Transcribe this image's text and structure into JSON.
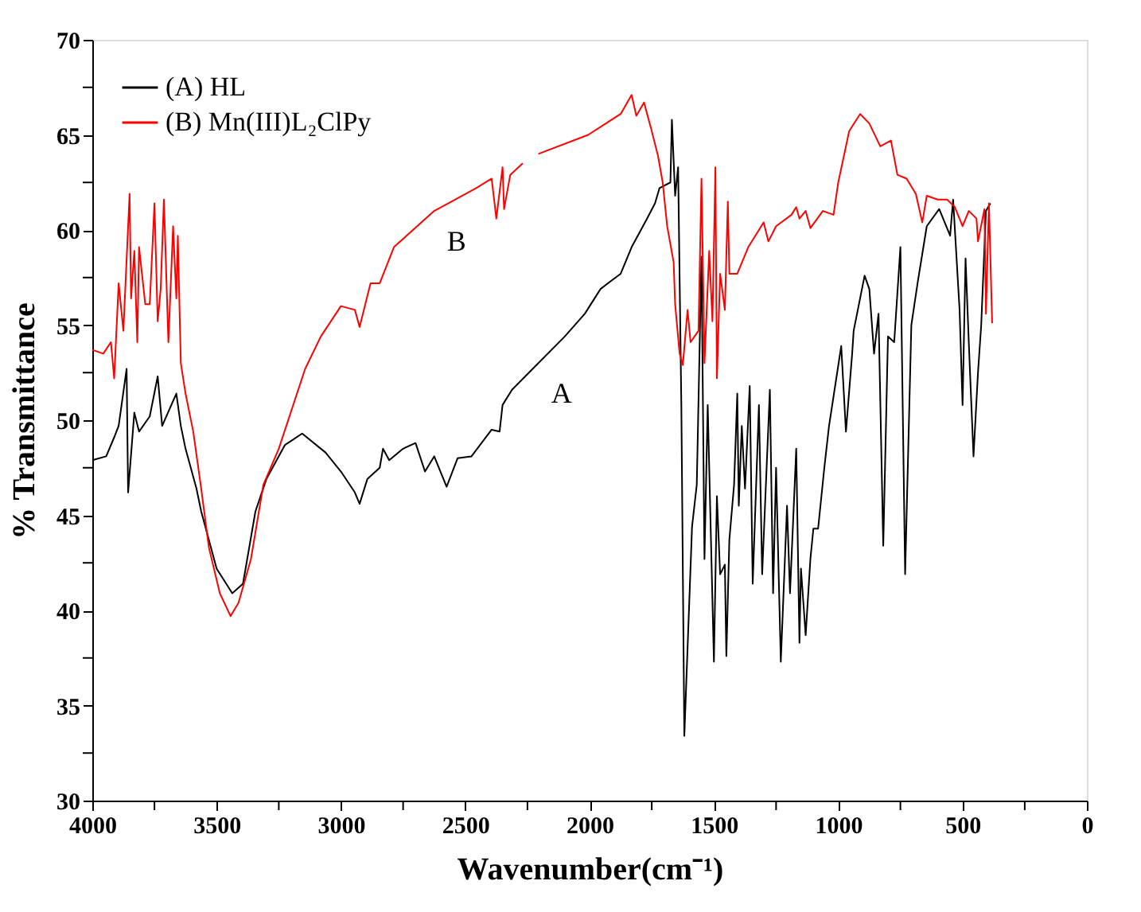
{
  "chart_data": {
    "type": "line",
    "xlabel": "Wavenumber(cm⁻¹)",
    "ylabel": "% Transmittance",
    "xlim": [
      4000,
      0
    ],
    "ylim": [
      30,
      70
    ],
    "xticks": [
      4000,
      {
        "value": 3750,
        "label": null
      },
      3500,
      {
        "value": 3250,
        "label": null
      },
      3000,
      {
        "value": 2750,
        "label": null
      },
      2500,
      {
        "value": 2250,
        "label": null
      },
      2000,
      {
        "value": 1750,
        "label": null
      },
      1500,
      {
        "value": 1250,
        "label": null
      },
      1000,
      {
        "value": 750,
        "label": null
      },
      500,
      {
        "value": 250,
        "label": null
      },
      0
    ],
    "yticks": [
      30,
      {
        "value": 32.5,
        "label": null
      },
      35,
      {
        "value": 37.5,
        "label": null
      },
      40,
      {
        "value": 42.5,
        "label": null
      },
      45,
      {
        "value": 47.5,
        "label": null
      },
      50,
      {
        "value": 52.5,
        "label": null
      },
      55,
      {
        "value": 57.5,
        "label": null
      },
      60,
      {
        "value": 62.5,
        "label": null
      },
      65,
      {
        "value": 67.5,
        "label": null
      },
      70
    ],
    "grid": false,
    "legend": "top left",
    "marker": "none",
    "line_style": "solid",
    "annotations": [
      {
        "text": "A",
        "x": 2206,
        "y": 53.0
      },
      {
        "text": "B",
        "x": 2625,
        "y": 61.0
      }
    ],
    "series": [
      {
        "name": "(A) HL",
        "color": "#000000",
        "x": [
          4000,
          3944,
          3912,
          3894,
          3862,
          3856,
          3831,
          3812,
          3769,
          3737,
          3719,
          3662,
          3644,
          3625,
          3581,
          3562,
          3500,
          3437,
          3394,
          3344,
          3300,
          3225,
          3156,
          3062,
          3000,
          2944,
          2925,
          2894,
          2844,
          2831,
          2806,
          2750,
          2700,
          2662,
          2625,
          2575,
          2531,
          2475,
          2394,
          2362,
          2350,
          2312,
          2206,
          2100,
          2019,
          1956,
          1875,
          1831,
          1769,
          1737,
          1719,
          1675,
          1669,
          1656,
          1644,
          1631,
          1619,
          1588,
          1569,
          1550,
          1538,
          1525,
          1500,
          1488,
          1475,
          1456,
          1450,
          1438,
          1419,
          1406,
          1400,
          1388,
          1375,
          1356,
          1344,
          1319,
          1306,
          1275,
          1262,
          1250,
          1231,
          1206,
          1194,
          1169,
          1156,
          1150,
          1131,
          1112,
          1100,
          1081,
          1056,
          1037,
          988,
          969,
          944,
          938,
          894,
          875,
          856,
          838,
          819,
          800,
          775,
          750,
          731,
          706,
          681,
          644,
          594,
          550,
          538,
          512,
          500,
          488,
          475,
          456,
          438,
          425,
          406,
          388
        ],
        "values": [
          47.9,
          48.1,
          49.1,
          49.7,
          52.7,
          46.2,
          50.4,
          49.4,
          50.2,
          52.3,
          49.7,
          51.4,
          49.7,
          48.5,
          46.4,
          45.2,
          42.2,
          40.9,
          41.4,
          45.2,
          46.9,
          48.7,
          49.3,
          48.3,
          47.3,
          46.2,
          45.6,
          46.9,
          47.5,
          48.5,
          47.9,
          48.5,
          48.8,
          47.3,
          48.1,
          46.5,
          48.0,
          48.1,
          49.5,
          49.4,
          50.8,
          51.6,
          53.0,
          54.4,
          55.6,
          56.9,
          57.7,
          59.1,
          60.6,
          61.4,
          62.2,
          62.5,
          65.8,
          61.8,
          63.3,
          50.8,
          33.4,
          44.4,
          46.6,
          58.6,
          42.7,
          50.8,
          37.3,
          46.0,
          41.9,
          42.4,
          37.6,
          43.7,
          46.6,
          51.4,
          45.5,
          49.7,
          46.4,
          51.8,
          41.4,
          50.8,
          41.9,
          51.6,
          40.9,
          47.5,
          37.3,
          45.5,
          40.9,
          48.5,
          38.3,
          42.2,
          38.7,
          42.7,
          44.3,
          44.3,
          47.5,
          49.7,
          53.9,
          49.4,
          53.5,
          54.7,
          57.6,
          56.9,
          53.5,
          55.6,
          43.4,
          54.4,
          54.1,
          59.1,
          41.9,
          55.0,
          57.2,
          60.2,
          61.1,
          59.7,
          61.6,
          55.8,
          50.8,
          58.5,
          54.1,
          48.1,
          52.5,
          55.0,
          61.0,
          61.4
        ]
      },
      {
        "name": "(B) Mn(III)L₂ClPy",
        "color": "#ff0000",
        "x": [
          4000,
          3956,
          3925,
          3912,
          3894,
          3875,
          3850,
          3844,
          3831,
          3819,
          3812,
          3787,
          3769,
          3750,
          3737,
          3725,
          3712,
          3694,
          3675,
          3662,
          3656,
          3644,
          3625,
          3594,
          3562,
          3531,
          3487,
          3444,
          3412,
          3362,
          3312,
          3250,
          3144,
          3081,
          3000,
          2944,
          2925,
          2881,
          2844,
          2787,
          2625,
          2456,
          2394,
          2375,
          2350,
          2344,
          2319,
          2269,
          null,
          2206,
          2006,
          1875,
          1831,
          1812,
          1781,
          1750,
          1725,
          1706,
          1688,
          1662,
          1656,
          1638,
          1625,
          1606,
          1594,
          1562,
          1550,
          1538,
          1519,
          1506,
          1494,
          1488,
          1475,
          1456,
          1444,
          1438,
          1406,
          1362,
          1300,
          1281,
          1250,
          1188,
          1169,
          1156,
          1131,
          1112,
          1062,
          1019,
          1000,
          956,
          912,
          875,
          831,
          788,
          762,
          725,
          688,
          662,
          644,
          600,
          562,
          531,
          500,
          475,
          444,
          438,
          412,
          406,
          394,
          381
        ],
        "values": [
          53.7,
          53.5,
          54.1,
          52.2,
          57.2,
          54.7,
          61.9,
          56.4,
          58.9,
          54.1,
          59.1,
          56.1,
          56.1,
          61.4,
          55.2,
          56.9,
          61.6,
          54.1,
          60.2,
          56.4,
          59.7,
          53.0,
          51.4,
          49.4,
          46.4,
          43.3,
          40.9,
          39.7,
          40.4,
          42.7,
          46.6,
          48.5,
          52.7,
          54.4,
          56.0,
          55.8,
          54.9,
          57.2,
          57.2,
          59.1,
          61.0,
          62.2,
          62.7,
          60.6,
          63.3,
          61.1,
          62.9,
          63.5,
          null,
          64.0,
          65.0,
          66.1,
          67.1,
          66.0,
          66.7,
          65.2,
          63.9,
          62.5,
          60.2,
          58.3,
          56.1,
          53.5,
          52.9,
          55.8,
          54.1,
          54.7,
          62.7,
          53.0,
          58.9,
          55.2,
          63.3,
          52.2,
          57.7,
          55.8,
          61.5,
          57.7,
          57.7,
          59.1,
          60.4,
          59.4,
          60.2,
          60.8,
          61.2,
          60.6,
          61.0,
          60.1,
          61.0,
          60.8,
          62.5,
          65.2,
          66.1,
          65.6,
          64.4,
          64.7,
          62.9,
          62.7,
          61.9,
          60.4,
          61.8,
          61.6,
          61.6,
          61.2,
          60.2,
          61.0,
          60.6,
          59.4,
          61.1,
          55.6,
          61.4,
          55.1
        ]
      }
    ]
  }
}
